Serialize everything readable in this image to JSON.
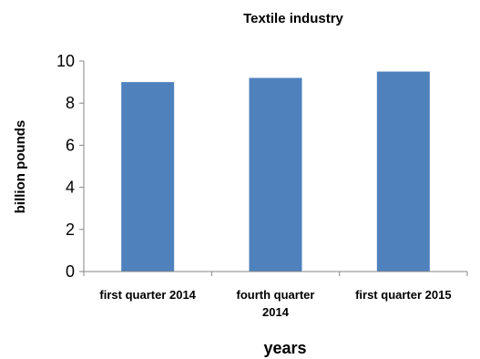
{
  "chart_data": {
    "type": "bar",
    "title": "Textile industry",
    "xlabel": "years",
    "ylabel": "billion pounds",
    "categories": [
      [
        "first quarter 2014"
      ],
      [
        "fourth quarter",
        "2014"
      ],
      [
        "first quarter 2015"
      ]
    ],
    "values": [
      9.0,
      9.2,
      9.5
    ],
    "ylim": [
      0,
      10
    ],
    "yticks": [
      "0",
      "2",
      "4",
      "6",
      "8",
      "10"
    ],
    "grid": false,
    "legend": "none",
    "bar_color": "#4F81BD",
    "axis_color": "#868686"
  }
}
